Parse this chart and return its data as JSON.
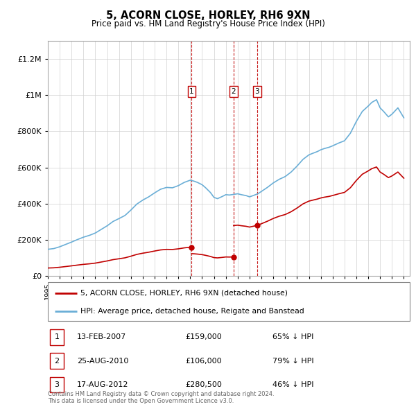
{
  "title": "5, ACORN CLOSE, HORLEY, RH6 9XN",
  "subtitle": "Price paid vs. HM Land Registry's House Price Index (HPI)",
  "xlim": [
    1995.0,
    2025.5
  ],
  "ylim": [
    0,
    1300000
  ],
  "yticks": [
    0,
    200000,
    400000,
    600000,
    800000,
    1000000,
    1200000
  ],
  "ytick_labels": [
    "£0",
    "£200K",
    "£400K",
    "£600K",
    "£800K",
    "£1M",
    "£1.2M"
  ],
  "transactions": [
    {
      "label": "1",
      "date": "13-FEB-2007",
      "price": 159000,
      "pct": "65% ↓ HPI",
      "year": 2007.12
    },
    {
      "label": "2",
      "date": "25-AUG-2010",
      "price": 106000,
      "pct": "79% ↓ HPI",
      "year": 2010.65
    },
    {
      "label": "3",
      "date": "17-AUG-2012",
      "price": 280500,
      "pct": "46% ↓ HPI",
      "year": 2012.64
    }
  ],
  "hpi_color": "#6aaed6",
  "property_color": "#c00000",
  "footnote": "Contains HM Land Registry data © Crown copyright and database right 2024.\nThis data is licensed under the Open Government Licence v3.0.",
  "legend_property": "5, ACORN CLOSE, HORLEY, RH6 9XN (detached house)",
  "legend_hpi": "HPI: Average price, detached house, Reigate and Banstead",
  "hpi_years": [
    1995.0,
    1995.5,
    1996.0,
    1996.5,
    1997.0,
    1997.5,
    1998.0,
    1998.5,
    1999.0,
    1999.5,
    2000.0,
    2000.5,
    2001.0,
    2001.5,
    2002.0,
    2002.5,
    2003.0,
    2003.5,
    2004.0,
    2004.5,
    2005.0,
    2005.5,
    2006.0,
    2006.5,
    2007.0,
    2007.3,
    2007.6,
    2008.0,
    2008.3,
    2008.7,
    2009.0,
    2009.3,
    2009.7,
    2010.0,
    2010.3,
    2010.7,
    2011.0,
    2011.3,
    2011.7,
    2012.0,
    2012.3,
    2012.7,
    2013.0,
    2013.5,
    2014.0,
    2014.5,
    2015.0,
    2015.5,
    2016.0,
    2016.5,
    2017.0,
    2017.3,
    2017.7,
    2018.0,
    2018.3,
    2018.7,
    2019.0,
    2019.5,
    2020.0,
    2020.5,
    2021.0,
    2021.5,
    2022.0,
    2022.3,
    2022.7,
    2023.0,
    2023.3,
    2023.7,
    2024.0,
    2024.5,
    2025.0
  ],
  "hpi_values": [
    148000,
    152000,
    162000,
    175000,
    188000,
    202000,
    215000,
    225000,
    238000,
    258000,
    278000,
    302000,
    318000,
    335000,
    365000,
    398000,
    420000,
    438000,
    460000,
    480000,
    490000,
    488000,
    500000,
    518000,
    530000,
    525000,
    518000,
    505000,
    488000,
    462000,
    435000,
    428000,
    440000,
    450000,
    448000,
    452000,
    455000,
    450000,
    445000,
    438000,
    445000,
    455000,
    468000,
    490000,
    515000,
    535000,
    550000,
    575000,
    608000,
    645000,
    670000,
    678000,
    688000,
    698000,
    705000,
    712000,
    720000,
    735000,
    748000,
    790000,
    855000,
    910000,
    940000,
    960000,
    975000,
    930000,
    910000,
    880000,
    895000,
    930000,
    875000
  ]
}
